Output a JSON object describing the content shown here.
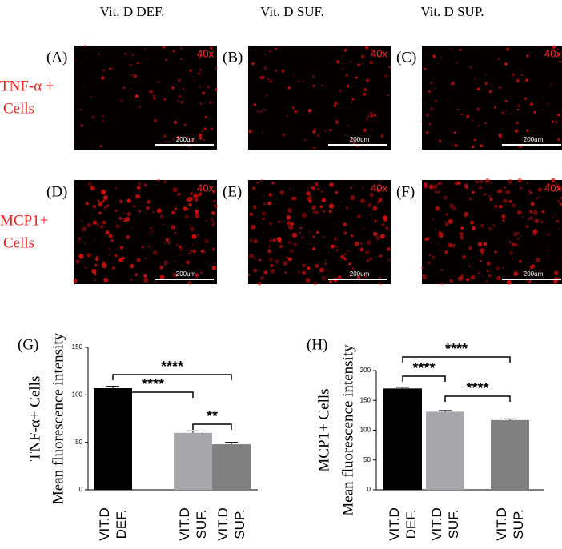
{
  "column_headers": [
    "Vit. D DEF.",
    "Vit. D SUF.",
    "Vit. D SUP."
  ],
  "rows": [
    {
      "label": [
        "TNF-α +",
        "Cells"
      ],
      "panels": [
        {
          "id": "(A)",
          "magnification": "40x",
          "scale_bar": "200um"
        },
        {
          "id": "(B)",
          "magnification": "40x",
          "scale_bar": "200um"
        },
        {
          "id": "(C)",
          "magnification": "40x",
          "scale_bar": "200um"
        }
      ]
    },
    {
      "label": [
        "MCP1+",
        "Cells"
      ],
      "panels": [
        {
          "id": "(D)",
          "magnification": "40x",
          "scale_bar": "200um"
        },
        {
          "id": "(E)",
          "magnification": "40x",
          "scale_bar": "200um"
        },
        {
          "id": "(F)",
          "magnification": "40x",
          "scale_bar": "200um"
        }
      ]
    }
  ],
  "chart_data": [
    {
      "type": "bar",
      "panel": "(G)",
      "ylabel": [
        "TNF-α+ Cells",
        "Mean fluorescence intensity"
      ],
      "categories": [
        "VIT.D DEF.",
        "VIT.D SUF.",
        "VIT.D SUP."
      ],
      "values": [
        107,
        60,
        48
      ],
      "errors": [
        2,
        2,
        2
      ],
      "colors": [
        "#000000",
        "#a7a7ab",
        "#808080"
      ],
      "ylim": [
        0,
        150
      ],
      "yticks": [
        0,
        50,
        100,
        150
      ],
      "annotations": [
        "****",
        "****",
        "**"
      ]
    },
    {
      "type": "bar",
      "panel": "(H)",
      "ylabel": [
        "MCP1+ Cells",
        "Mean fluorescence intensity"
      ],
      "categories": [
        "VIT.D DEF.",
        "VIT.D SUF.",
        "VIT.D SUP."
      ],
      "values": [
        170,
        131,
        117
      ],
      "errors": [
        2,
        2,
        2
      ],
      "colors": [
        "#000000",
        "#a7a7ab",
        "#808080"
      ],
      "ylim": [
        0,
        200
      ],
      "yticks": [
        0,
        50,
        100,
        150,
        200
      ],
      "annotations": [
        "****",
        "****",
        "****"
      ]
    }
  ]
}
